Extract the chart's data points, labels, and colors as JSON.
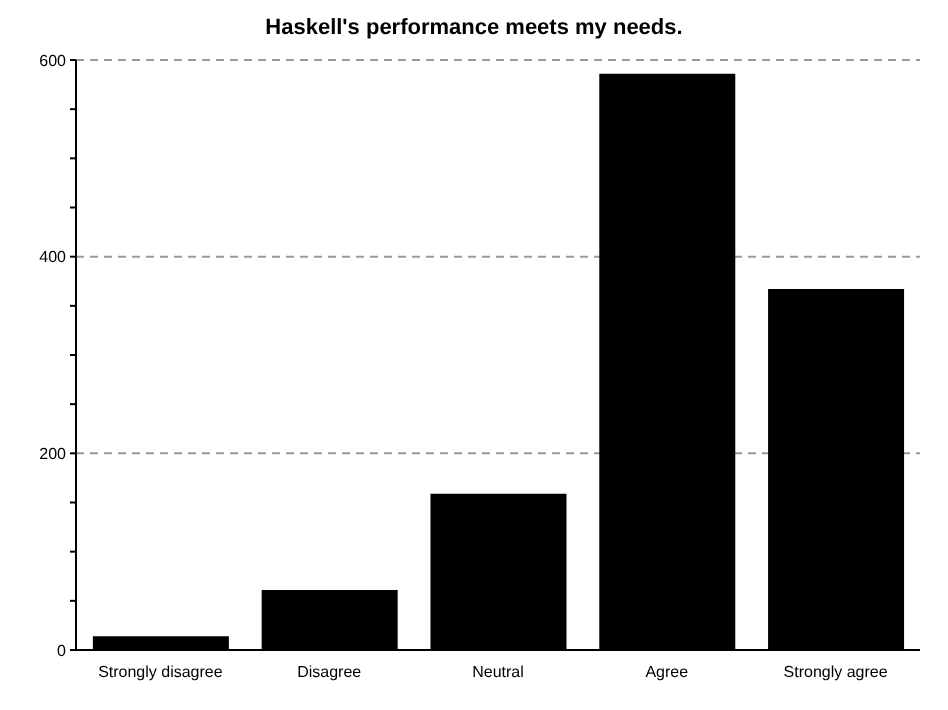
{
  "chart_data": {
    "type": "bar",
    "title": "Haskell's performance meets my needs.",
    "categories": [
      "Strongly disagree",
      "Disagree",
      "Neutral",
      "Agree",
      "Strongly agree"
    ],
    "values": [
      14,
      61,
      159,
      586,
      367
    ],
    "color": "#000000",
    "ylim": [
      0,
      600
    ],
    "yticks": [
      0,
      {
        "value": 50,
        "label": null
      },
      {
        "value": 100,
        "label": null
      },
      {
        "value": 150,
        "label": null
      },
      200,
      {
        "value": 250,
        "label": null
      },
      {
        "value": 300,
        "label": null
      },
      {
        "value": 350,
        "label": null
      },
      400,
      {
        "value": 450,
        "label": null
      },
      {
        "value": 500,
        "label": null
      },
      {
        "value": 550,
        "label": null
      },
      600
    ],
    "grid": "y"
  }
}
